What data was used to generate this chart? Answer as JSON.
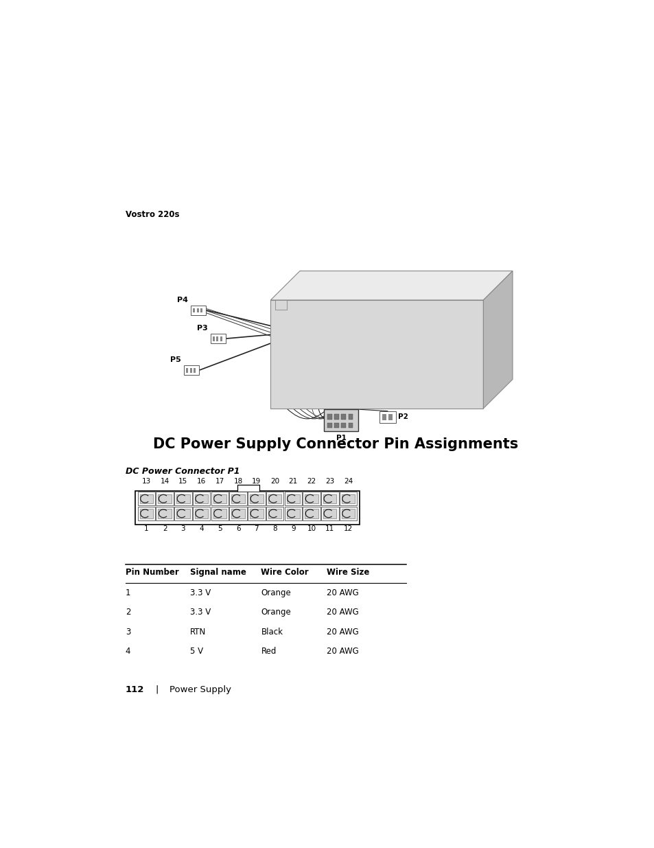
{
  "page_width": 9.54,
  "page_height": 12.35,
  "bg_color": "#ffffff",
  "vostro_label": "Vostro 220s",
  "main_title": "DC Power Supply Connector Pin Assignments",
  "connector_subtitle": "DC Power Connector P1",
  "top_pins": [
    "13",
    "14",
    "15",
    "16",
    "17",
    "18",
    "19",
    "20",
    "21",
    "22",
    "23",
    "24"
  ],
  "bottom_pins": [
    "1",
    "2",
    "3",
    "4",
    "5",
    "6",
    "7",
    "8",
    "9",
    "10",
    "11",
    "12"
  ],
  "table_headers": [
    "Pin Number",
    "Signal name",
    "Wire Color",
    "Wire Size"
  ],
  "table_rows": [
    [
      "1",
      "3.3 V",
      "Orange",
      "20 AWG"
    ],
    [
      "2",
      "3.3 V",
      "Orange",
      "20 AWG"
    ],
    [
      "3",
      "RTN",
      "Black",
      "20 AWG"
    ],
    [
      "4",
      "5 V",
      "Red",
      "20 AWG"
    ]
  ],
  "footer_text": "112",
  "footer_sep": "|",
  "footer_label": "Power Supply",
  "psu": {
    "front_color": "#d8d8d8",
    "top_color": "#ebebeb",
    "right_color": "#b8b8b8",
    "edge_color": "#888888"
  }
}
